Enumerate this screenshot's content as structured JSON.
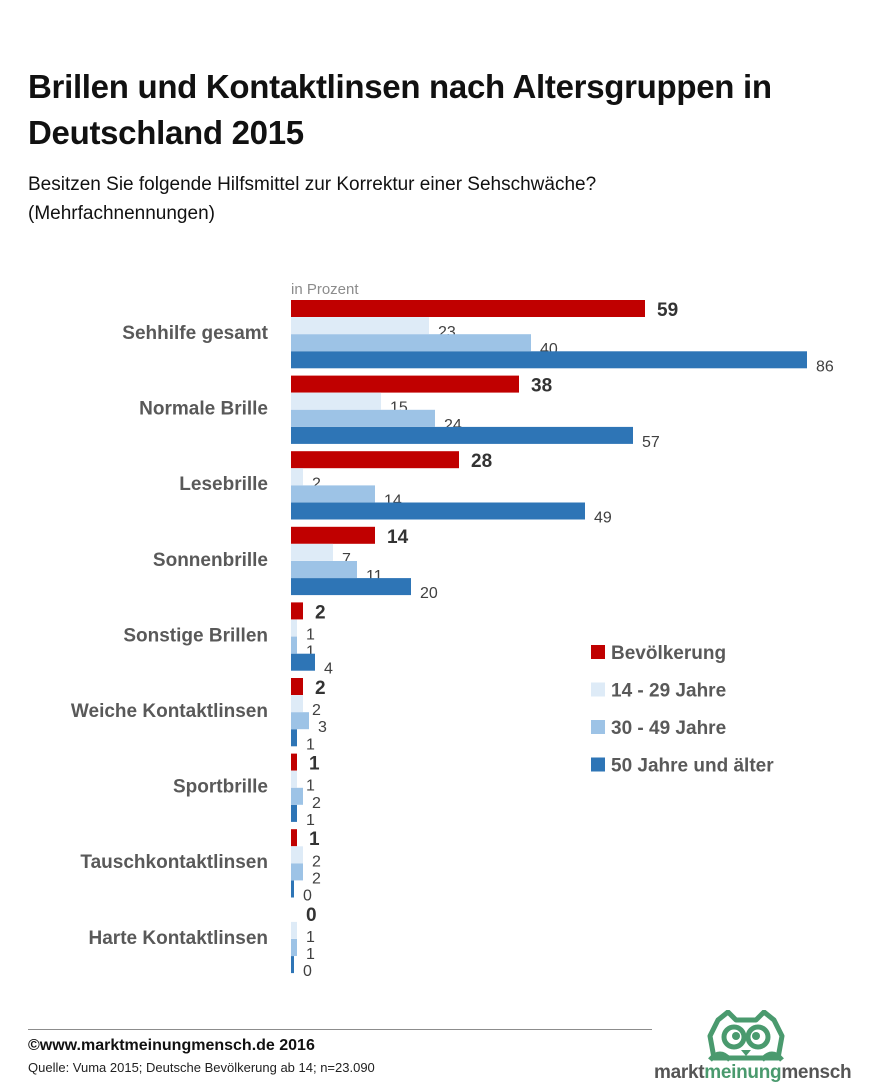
{
  "header": {
    "title": "Brillen und Kontaktlinsen nach Altersgruppen in Deutschland 2015",
    "subtitle_line1": "Besitzen Sie folgende Hilfsmittel zur Korrektur einer Sehschwäche?",
    "subtitle_line2": "(Mehrfachnennungen)"
  },
  "chart_data": {
    "type": "bar",
    "orientation": "horizontal",
    "title": "Brillen und Kontaktlinsen nach Altersgruppen in Deutschland 2015",
    "subtitle": "Besitzen Sie folgende Hilfsmittel zur Korrektur einer Sehschwäche? (Mehrfachnennungen)",
    "unit_label": "in Prozent",
    "xlabel": "",
    "ylabel": "",
    "xlim": [
      0,
      86
    ],
    "grid": false,
    "legend_position": "right",
    "categories": [
      "Sehhilfe gesamt",
      "Normale Brille",
      "Lesebrille",
      "Sonnenbrille",
      "Sonstige Brillen",
      "Weiche Kontaktlinsen",
      "Sportbrille",
      "Tauschkontaktlinsen",
      "Harte Kontaktlinsen"
    ],
    "series": [
      {
        "name": "Bevölkerung",
        "color": "#c00000",
        "bold_labels": true,
        "values": [
          59,
          38,
          28,
          14,
          2,
          2,
          1,
          1,
          0
        ]
      },
      {
        "name": "14 - 29 Jahre",
        "color": "#deebf7",
        "bold_labels": false,
        "values": [
          23,
          15,
          2,
          7,
          1,
          2,
          1,
          2,
          1
        ]
      },
      {
        "name": "30 - 49 Jahre",
        "color": "#9dc3e6",
        "bold_labels": false,
        "values": [
          40,
          24,
          14,
          11,
          1,
          3,
          2,
          2,
          1
        ]
      },
      {
        "name": "50 Jahre und älter",
        "color": "#2e75b6",
        "bold_labels": false,
        "values": [
          86,
          57,
          49,
          20,
          4,
          1,
          1,
          0,
          0
        ]
      }
    ]
  },
  "footer": {
    "copyright": "©www.marktmeinungmensch.de 2016",
    "source": "Quelle: Vuma 2015; Deutsche Bevölkerung ab 14; n=23.090"
  },
  "logo": {
    "icon": "owl-icon",
    "part1": "markt",
    "part2": "meinung",
    "part3": "mensch",
    "color": "#4a9a6e"
  }
}
